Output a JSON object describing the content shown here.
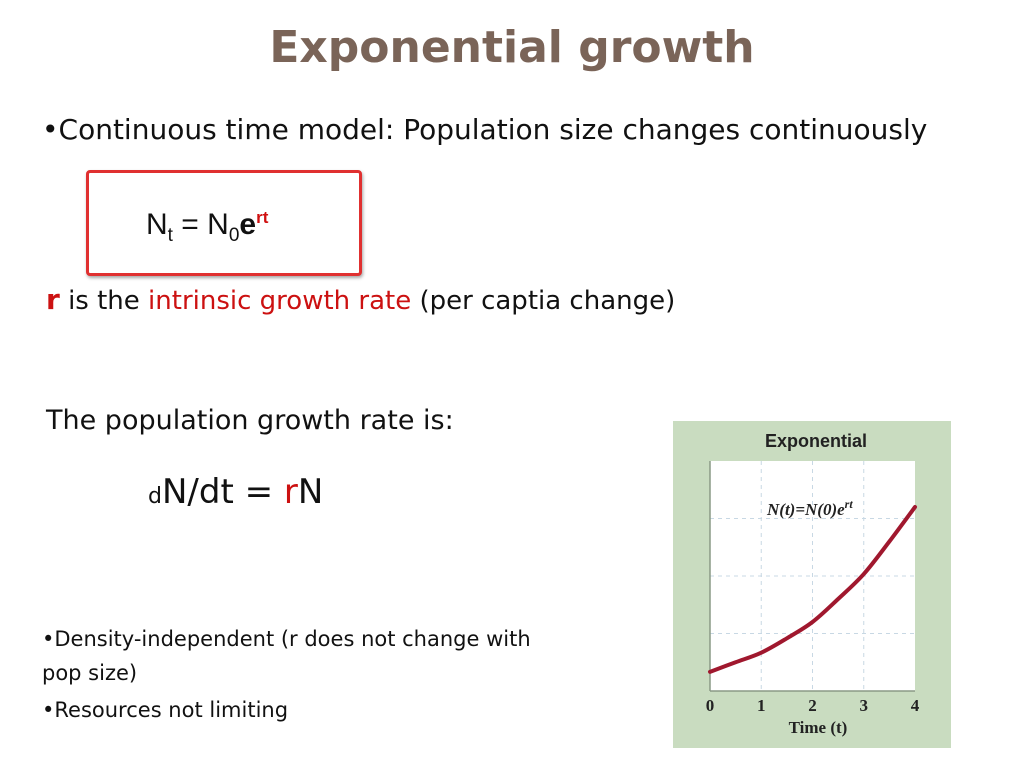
{
  "slide": {
    "title": "Exponential growth",
    "bullet1": "•Continuous time model: Population size changes continuously",
    "equation1": {
      "N": "N",
      "t_sub": "t",
      "equals": " = N",
      "zero_sub": "0",
      "e": "e",
      "rt_sup": "rt"
    },
    "r_line": {
      "r": "r",
      "text_a": " is the ",
      "highlight": "intrinsic growth rate",
      "text_b": " (per captia change)"
    },
    "pop_growth_label": "The population growth rate is:",
    "equation2": {
      "d": "d",
      "rest": "N/dt = ",
      "r": "r",
      "N": "N"
    },
    "bullet2": "•Density-independent (r does not change with pop size)",
    "bullet3": "•Resources not limiting"
  },
  "figure": {
    "title": "Exponential",
    "formula": "N(t)=N(0)e",
    "formula_sup": "rt",
    "xlabel": "Time (t)",
    "xticks": [
      "0",
      "1",
      "2",
      "3",
      "4"
    ],
    "colors": {
      "background": "#c9dcc0",
      "curve": "#a0182e",
      "grid": "#c8d8e4"
    }
  },
  "chart_data": {
    "type": "line",
    "title": "Exponential",
    "xlabel": "Time (t)",
    "ylabel": "",
    "x": [
      0,
      0.5,
      1,
      1.5,
      2,
      2.5,
      3,
      3.5,
      4
    ],
    "series": [
      {
        "name": "",
        "values": [
          1.0,
          1.5,
          2.0,
          2.75,
          3.6,
          4.8,
          6.1,
          7.8,
          9.6
        ]
      }
    ],
    "xlim": [
      0,
      4
    ],
    "ylim": [
      0,
      12
    ],
    "grid": true
  }
}
